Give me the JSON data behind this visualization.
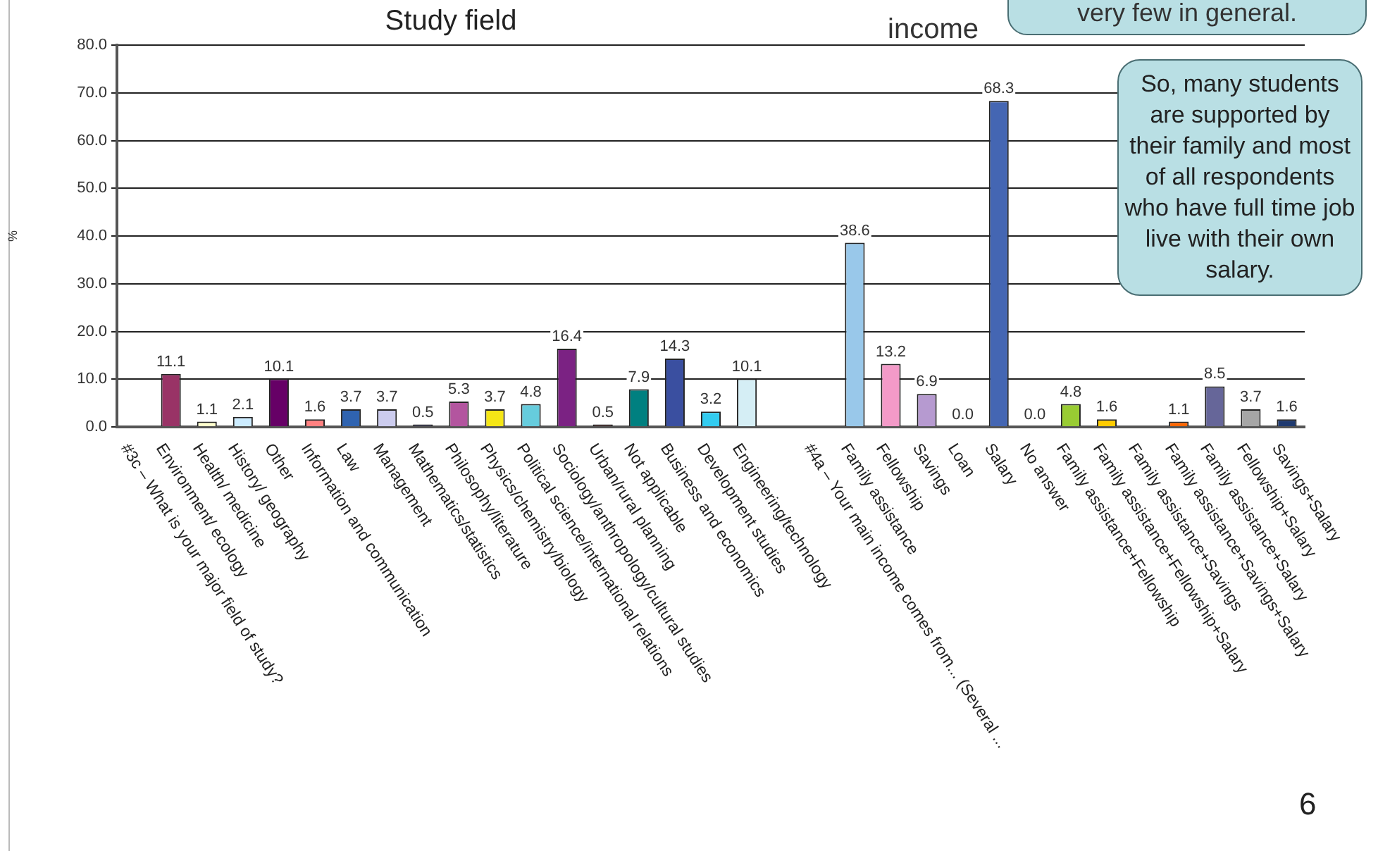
{
  "chart_data": {
    "type": "bar",
    "title": "Study field",
    "ylabel": "%",
    "categories": [
      "#3c – What is your major field of study?",
      "Environment/ ecology",
      "Health/ medicine",
      "History/ geography",
      "Other",
      "Information and communication",
      "Law",
      "Management",
      "Mathematics/statistics",
      "Philosophy/literature",
      "Physics/chemistry/biology",
      "Political science/international relations",
      "Sociology/anthropology/cultural studies",
      "Urban/rural planning",
      "Not applicable",
      "Business and economics",
      "Development studies",
      "Engineering/technology",
      null,
      "#4a – Your main income comes from... (Several ...",
      "Family assistance",
      "Fellowship",
      "Savings",
      "Loan",
      "Salary",
      "No answer",
      "Family assistance+Fellowship",
      "Family assistance+Fellowship+Salary",
      "Family assistance+Savings",
      "Family assistance+Savings+Salary",
      "Family assistance+Salary",
      "Fellowship+Salary",
      "Savings+Salary"
    ],
    "values": [
      null,
      11.1,
      1.1,
      2.1,
      10.1,
      1.6,
      3.7,
      3.7,
      0.5,
      5.3,
      3.7,
      4.8,
      16.4,
      0.5,
      7.9,
      14.3,
      3.2,
      10.1,
      null,
      null,
      38.6,
      13.2,
      6.9,
      0.0,
      68.3,
      0.0,
      4.8,
      1.6,
      null,
      1.1,
      8.5,
      3.7,
      1.6
    ],
    "value_labels": [
      null,
      "11.1",
      "1.1",
      "2.1",
      "10.1",
      "1.6",
      "3.7",
      "3.7",
      "0.5",
      "5.3",
      "3.7",
      "4.8",
      "16.4",
      "0.5",
      "7.9",
      "14.3",
      "3.2",
      "10.1",
      null,
      null,
      "38.6",
      "13.2",
      "6.9",
      "0.0",
      "68.3",
      "0.0",
      "4.8",
      "1.6",
      null,
      "1.1",
      "8.5",
      "3.7",
      "1.6"
    ],
    "colors": [
      "#ffffff",
      "#993366",
      "#ffffcc",
      "#ccecff",
      "#660066",
      "#ff8080",
      "#2f63b0",
      "#ccccee",
      "#2a2a44",
      "#b3559f",
      "#f5e616",
      "#66ccdd",
      "#7b2283",
      "#3a1f1f",
      "#008080",
      "#3a4fa0",
      "#33ccf0",
      "#d5eef5",
      "#ffffff",
      "#ffffff",
      "#99c8ea",
      "#f39ac8",
      "#b69ad0",
      "#999999",
      "#4466b3",
      "#999999",
      "#99cc33",
      "#ffcc00",
      "#ffffff",
      "#ff6600",
      "#666699",
      "#a6a6a6",
      "#1f3a70"
    ],
    "ylim": [
      0,
      80
    ],
    "yticks": [
      {
        "value": 0,
        "label": "0.0"
      },
      {
        "value": 10,
        "label": "10.0"
      },
      {
        "value": 20,
        "label": "20.0"
      },
      {
        "value": 30,
        "label": "30.0"
      },
      {
        "value": 40,
        "label": "40.0"
      },
      {
        "value": 50,
        "label": "50.0"
      },
      {
        "value": 60,
        "label": "60.0"
      },
      {
        "value": 70,
        "label": "70.0"
      },
      {
        "value": 80,
        "label": "80.0"
      }
    ],
    "grid": "y",
    "legend": false,
    "annotations": [
      "income",
      "very few in general.",
      "So, many students are supported by their family and most of all respondents who have full time job live with their own salary.",
      "6"
    ]
  }
}
